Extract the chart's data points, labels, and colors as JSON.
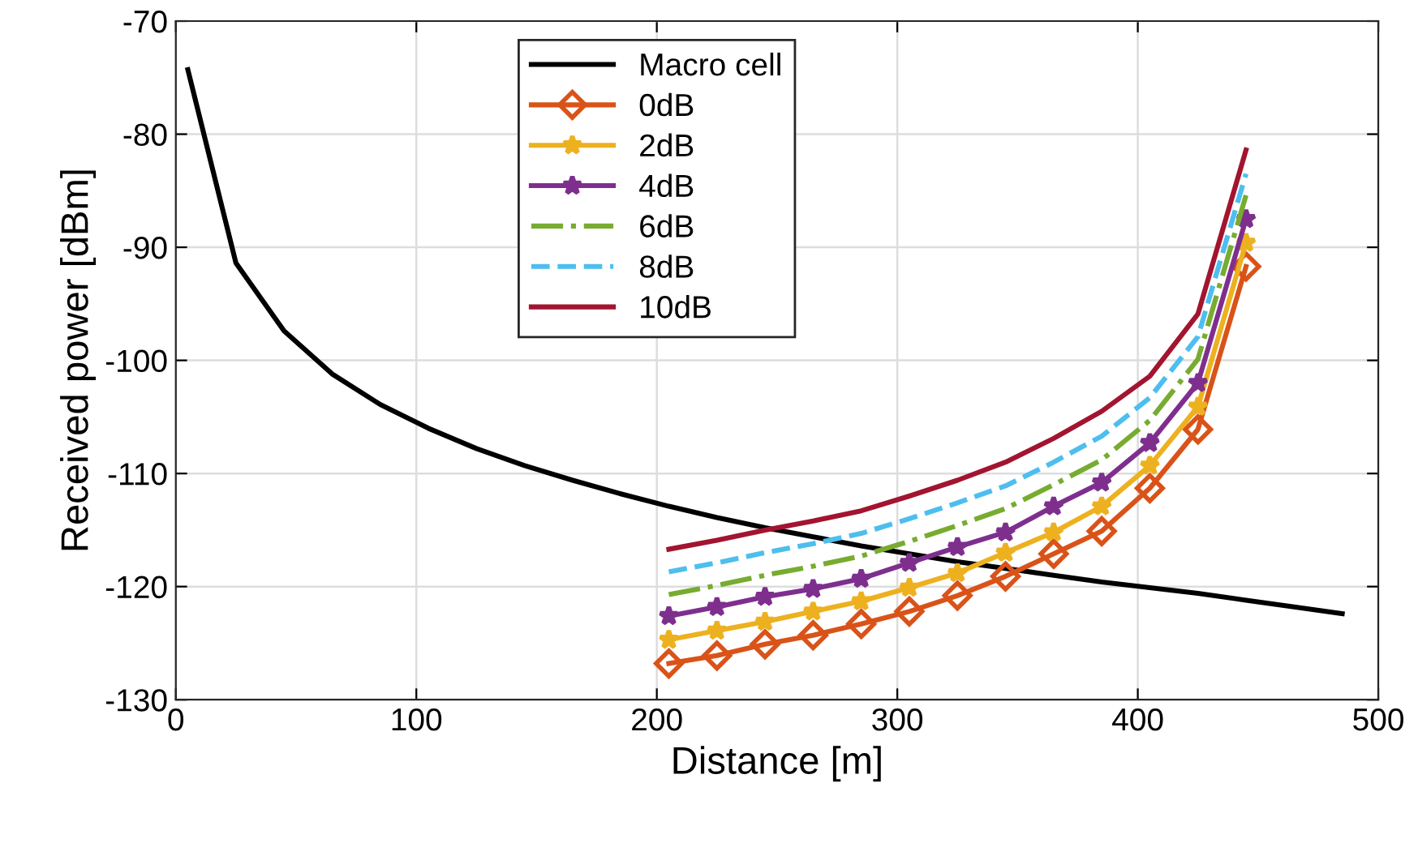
{
  "chart_data": {
    "type": "line",
    "xlabel": "Distance [m]",
    "ylabel": "Received power [dBm]",
    "xlim": [
      0,
      500
    ],
    "xticks": [
      0,
      100,
      200,
      300,
      400,
      500
    ],
    "ylim": [
      -130,
      -70
    ],
    "yticks": [
      -130,
      -120,
      -110,
      -100,
      -90,
      -80,
      -70
    ],
    "grid": true,
    "legend": "top",
    "line_style": "solid",
    "marker": "none",
    "series": [
      {
        "name": "Macro cell",
        "color": "#000000",
        "x": [
          5,
          25,
          45,
          65,
          85,
          105,
          125,
          145,
          165,
          185,
          205,
          225,
          245,
          265,
          285,
          305,
          325,
          345,
          365,
          385,
          405,
          425,
          445,
          465,
          485
        ],
        "values": [
          -74.3,
          -91.4,
          -97.4,
          -101.2,
          -103.9,
          -106.0,
          -107.8,
          -109.3,
          -110.6,
          -111.8,
          -112.9,
          -113.9,
          -114.8,
          -115.6,
          -116.4,
          -117.1,
          -117.8,
          -118.4,
          -119.0,
          -119.6,
          -120.1,
          -120.6,
          -121.2,
          -121.8,
          -122.4
        ]
      },
      {
        "name": "0dB",
        "color": "#d95319",
        "marker": "diamond",
        "x": [
          205,
          225,
          245,
          265,
          285,
          305,
          325,
          345,
          365,
          385,
          405,
          425,
          445
        ],
        "values": [
          -126.8,
          -126.1,
          -125.1,
          -124.3,
          -123.3,
          -122.2,
          -120.8,
          -119.1,
          -117.1,
          -115.1,
          -111.3,
          -106.1,
          -91.7
        ]
      },
      {
        "name": "2dB",
        "color": "#edb120",
        "marker": "star",
        "x": [
          205,
          225,
          245,
          265,
          285,
          305,
          325,
          345,
          365,
          385,
          405,
          425,
          445
        ],
        "values": [
          -124.7,
          -123.9,
          -123.1,
          -122.2,
          -121.3,
          -120.1,
          -118.8,
          -117.0,
          -115.2,
          -112.9,
          -109.3,
          -104.1,
          -89.6
        ]
      },
      {
        "name": "4dB",
        "color": "#7e2f8e",
        "marker": "star",
        "x": [
          205,
          225,
          245,
          265,
          285,
          305,
          325,
          345,
          365,
          385,
          405,
          425,
          445
        ],
        "values": [
          -122.6,
          -121.8,
          -120.9,
          -120.2,
          -119.3,
          -117.9,
          -116.5,
          -115.2,
          -112.9,
          -110.8,
          -107.3,
          -102.0,
          -87.5
        ]
      },
      {
        "name": "6dB",
        "color": "#77ac30",
        "line_style": "dashdot",
        "x": [
          205,
          225,
          245,
          265,
          285,
          305,
          325,
          345,
          365,
          385,
          405,
          425,
          445
        ],
        "values": [
          -120.7,
          -119.9,
          -119.0,
          -118.2,
          -117.3,
          -116.0,
          -114.6,
          -113.1,
          -111.0,
          -108.8,
          -105.3,
          -99.9,
          -85.4
        ]
      },
      {
        "name": "8dB",
        "color": "#4dbeee",
        "line_style": "dashed",
        "x": [
          205,
          225,
          245,
          265,
          285,
          305,
          325,
          345,
          365,
          385,
          405,
          425,
          445
        ],
        "values": [
          -118.7,
          -117.9,
          -117.0,
          -116.2,
          -115.3,
          -114.0,
          -112.6,
          -111.1,
          -109.0,
          -106.7,
          -103.3,
          -97.9,
          -83.5
        ]
      },
      {
        "name": "10dB",
        "color": "#a2142f",
        "x": [
          205,
          225,
          245,
          265,
          285,
          305,
          325,
          345,
          365,
          385,
          405,
          425,
          445
        ],
        "values": [
          -116.7,
          -115.9,
          -115.0,
          -114.2,
          -113.3,
          -112.0,
          -110.6,
          -109.0,
          -106.9,
          -104.5,
          -101.4,
          -95.9,
          -81.4
        ]
      }
    ]
  }
}
